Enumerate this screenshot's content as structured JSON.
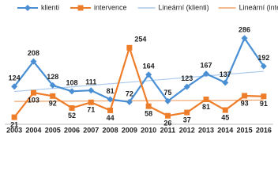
{
  "chart_data": {
    "type": "line",
    "categories": [
      "2003",
      "2004",
      "2005",
      "2006",
      "2007",
      "2008",
      "2009",
      "2010",
      "2011",
      "2012",
      "2013",
      "2014",
      "2015",
      "2016"
    ],
    "series": [
      {
        "name": "klienti",
        "color": "#4a8fd4",
        "marker": "diamond",
        "values": [
          124,
          208,
          128,
          108,
          111,
          81,
          72,
          164,
          75,
          123,
          167,
          137,
          286,
          192
        ],
        "trendline": {
          "name": "Lineární (klienti)",
          "color": "#a9c9ec"
        }
      },
      {
        "name": "intervence",
        "color": "#ee7d2a",
        "marker": "square",
        "values": [
          21,
          103,
          92,
          52,
          71,
          44,
          254,
          58,
          26,
          37,
          81,
          45,
          93,
          91
        ],
        "trendline": {
          "name": "Lineární (intervence)",
          "color": "#f0a36b"
        }
      }
    ],
    "ylim": [
      0,
      300
    ]
  }
}
